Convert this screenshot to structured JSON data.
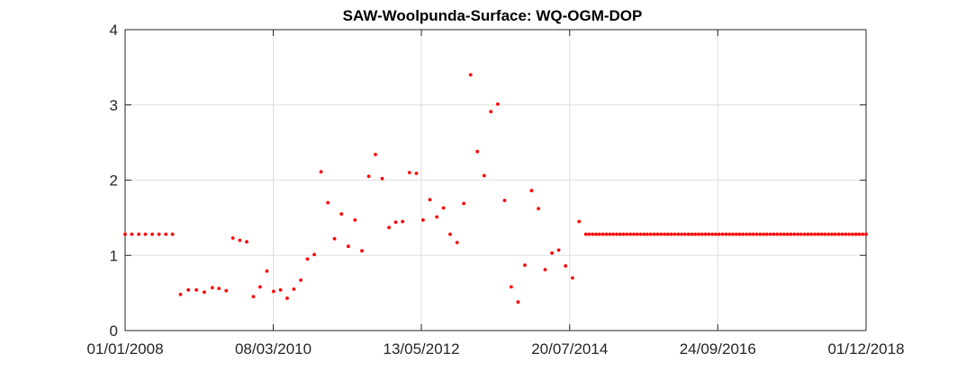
{
  "chart_data": {
    "type": "scatter",
    "title": "SAW-Woolpunda-Surface: WQ-OGM-DOP",
    "xlabel": "",
    "ylabel": "",
    "x_ticks": [
      "01/01/2008",
      "08/03/2010",
      "13/05/2012",
      "20/07/2014",
      "24/09/2016",
      "01/12/2018"
    ],
    "x_tick_dates": [
      "2008-01-01",
      "2010-03-08",
      "2012-05-13",
      "2014-07-20",
      "2016-09-24",
      "2018-12-01"
    ],
    "xlim": [
      "2008-01-01",
      "2018-12-01"
    ],
    "y_ticks": [
      "0",
      "1",
      "2",
      "3",
      "4"
    ],
    "ylim": [
      0,
      4
    ],
    "grid": true,
    "marker_color": "#ff0000",
    "series": [
      {
        "points": [
          [
            "2008-01-01",
            1.28
          ],
          [
            "2008-02-06",
            1.28
          ],
          [
            "2008-03-14",
            1.28
          ],
          [
            "2008-04-19",
            1.28
          ],
          [
            "2008-05-26",
            1.28
          ],
          [
            "2008-07-01",
            1.28
          ],
          [
            "2008-08-07",
            1.28
          ],
          [
            "2008-09-12",
            1.28
          ],
          [
            "2008-10-25",
            0.48
          ],
          [
            "2008-12-06",
            0.54
          ],
          [
            "2009-01-18",
            0.54
          ],
          [
            "2009-03-02",
            0.51
          ],
          [
            "2009-04-14",
            0.57
          ],
          [
            "2009-05-20",
            0.56
          ],
          [
            "2009-06-28",
            0.53
          ],
          [
            "2009-08-03",
            1.23
          ],
          [
            "2009-09-09",
            1.2
          ],
          [
            "2009-10-16",
            1.18
          ],
          [
            "2009-11-21",
            0.45
          ],
          [
            "2009-12-27",
            0.58
          ],
          [
            "2010-02-02",
            0.79
          ],
          [
            "2010-03-10",
            0.52
          ],
          [
            "2010-04-16",
            0.54
          ],
          [
            "2010-05-22",
            0.43
          ],
          [
            "2010-06-27",
            0.55
          ],
          [
            "2010-08-03",
            0.67
          ],
          [
            "2010-09-08",
            0.95
          ],
          [
            "2010-10-15",
            1.01
          ],
          [
            "2010-11-20",
            2.11
          ],
          [
            "2010-12-27",
            1.7
          ],
          [
            "2011-02-01",
            1.22
          ],
          [
            "2011-03-10",
            1.55
          ],
          [
            "2011-04-16",
            1.12
          ],
          [
            "2011-05-22",
            1.47
          ],
          [
            "2011-06-28",
            1.06
          ],
          [
            "2011-08-04",
            2.05
          ],
          [
            "2011-09-09",
            2.34
          ],
          [
            "2011-10-15",
            2.02
          ],
          [
            "2011-11-21",
            1.37
          ],
          [
            "2011-12-27",
            1.44
          ],
          [
            "2012-02-02",
            1.45
          ],
          [
            "2012-03-10",
            2.1
          ],
          [
            "2012-04-16",
            2.09
          ],
          [
            "2012-05-22",
            1.47
          ],
          [
            "2012-06-28",
            1.74
          ],
          [
            "2012-08-04",
            1.51
          ],
          [
            "2012-09-09",
            1.63
          ],
          [
            "2012-10-15",
            1.28
          ],
          [
            "2012-11-21",
            1.17
          ],
          [
            "2012-12-27",
            1.69
          ],
          [
            "2013-02-02",
            3.4
          ],
          [
            "2013-03-10",
            2.38
          ],
          [
            "2013-04-16",
            2.06
          ],
          [
            "2013-05-22",
            2.91
          ],
          [
            "2013-06-28",
            3.01
          ],
          [
            "2013-08-04",
            1.73
          ],
          [
            "2013-09-09",
            0.58
          ],
          [
            "2013-10-15",
            0.38
          ],
          [
            "2013-11-21",
            0.87
          ],
          [
            "2013-12-27",
            1.86
          ],
          [
            "2014-02-02",
            1.62
          ],
          [
            "2014-03-10",
            0.81
          ],
          [
            "2014-04-16",
            1.03
          ],
          [
            "2014-05-22",
            1.07
          ],
          [
            "2014-06-28",
            0.86
          ],
          [
            "2014-08-04",
            0.7
          ],
          [
            "2014-09-09",
            1.45
          ]
        ],
        "fill_from": "2014-10-15",
        "fill_to": "2018-12-01",
        "fill_value": 1.28,
        "fill_count": 83
      }
    ]
  }
}
